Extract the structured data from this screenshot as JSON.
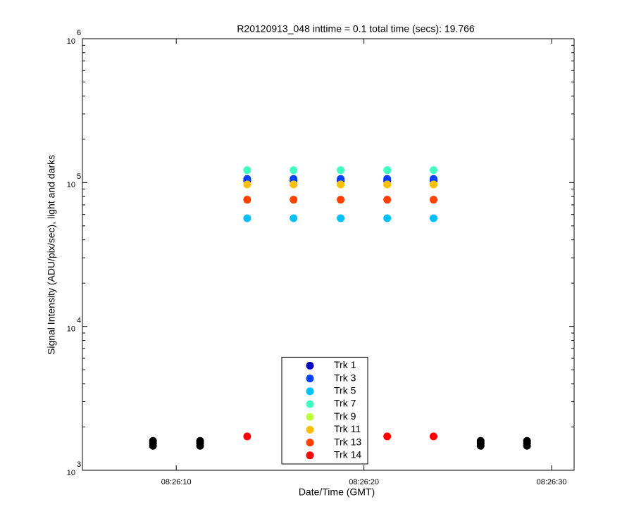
{
  "chart_data": {
    "type": "scatter",
    "title": "R20120913_048 inttime = 0.1 total time (secs): 19.766",
    "x_label": "Date/Time (GMT)",
    "y_label": "Signal Intensity (ADU/pix/sec), light and darks",
    "xlim": [
      30365.0,
      30391.2
    ],
    "xticks": [
      {
        "value": 30370,
        "label": "08:26:10"
      },
      {
        "value": 30380,
        "label": "08:26:20"
      },
      {
        "value": 30390,
        "label": "08:26:30"
      }
    ],
    "ylim": [
      1000,
      1000000
    ],
    "y_log": true,
    "yticks": [
      {
        "value": 1000,
        "label": "10",
        "exponent": "3"
      },
      {
        "value": 10000,
        "label": "10",
        "exponent": "4"
      },
      {
        "value": 100000,
        "label": "10",
        "exponent": "5"
      },
      {
        "value": 1000000,
        "label": "10",
        "exponent": "6"
      }
    ],
    "legend_position": "south",
    "series": [
      {
        "name": "Trk 1",
        "color": "#0000c0",
        "x": [
          30373.78,
          30376.25,
          30378.76,
          30381.24,
          30383.71
        ],
        "values": [
          103000,
          103000,
          103000,
          103000,
          103000
        ]
      },
      {
        "name": "Trk 3",
        "color": "#0040ff",
        "x": [
          30373.78,
          30376.25,
          30378.76,
          30381.24,
          30383.71
        ],
        "values": [
          106000,
          106000,
          106000,
          106000,
          106000
        ]
      },
      {
        "name": "Trk 5",
        "color": "#00c0ff",
        "x": [
          30373.78,
          30376.25,
          30378.76,
          30381.24,
          30383.71
        ],
        "values": [
          56500,
          56500,
          56500,
          56500,
          56500
        ]
      },
      {
        "name": "Trk 7",
        "color": "#40ffc0",
        "x": [
          30373.78,
          30376.25,
          30378.76,
          30381.24,
          30383.71
        ],
        "values": [
          122000,
          122000,
          122000,
          122000,
          122000
        ]
      },
      {
        "name": "Trk 9",
        "color": "#c0ff40",
        "x": [
          30373.78,
          30376.25,
          30378.76,
          30381.24,
          30383.71
        ],
        "values": [
          97000,
          97000,
          97000,
          97000,
          97000
        ]
      },
      {
        "name": "Trk 11",
        "color": "#ffc000",
        "x": [
          30373.78,
          30376.25,
          30378.76,
          30381.24,
          30383.71
        ],
        "values": [
          97000,
          97000,
          97000,
          97000,
          97000
        ]
      },
      {
        "name": "Trk 13",
        "color": "#ff4000",
        "x": [
          30373.78,
          30376.25,
          30378.76,
          30381.24,
          30383.71
        ],
        "values": [
          76000,
          76000,
          76000,
          76000,
          76000
        ]
      },
      {
        "name": "Trk 14",
        "color": "#ff0000",
        "x": [
          30373.78,
          30376.25,
          30378.76,
          30381.24,
          30383.71
        ],
        "values": [
          1720,
          null,
          null,
          1720,
          1720
        ]
      },
      {
        "color": "#000000",
        "x": [
          30368.76,
          30368.76,
          30368.76,
          30371.27,
          30371.27,
          30371.27,
          30386.22,
          30386.22,
          30386.22,
          30388.69,
          30388.69,
          30388.69
        ],
        "values": [
          1480,
          1540,
          1600,
          1480,
          1540,
          1600,
          1480,
          1540,
          1600,
          1480,
          1540,
          1600
        ]
      }
    ]
  }
}
